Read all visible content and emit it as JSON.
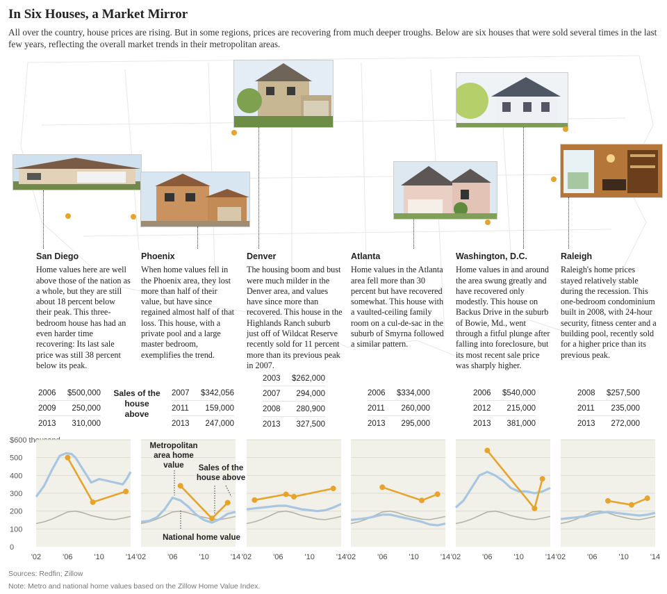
{
  "headline": "In Six Houses, a Market Mirror",
  "dek": "All over the country, house prices are rising. But in some regions, prices are recovering from much deeper troughs. Below are six houses that were sold several times in the last few years, reflecting the overall market trends in their metropolitan areas.",
  "sales_label": "Sales of the house above",
  "cities": [
    {
      "name": "San Diego",
      "text": "Home values here are well above those of the nation as a whole, but they are still about 18 percent below their peak. This three-bedroom house has had an even harder time recovering: Its last sale price was still 38 percent below its peak.",
      "sales": [
        {
          "year": "2006",
          "price": "$500,000"
        },
        {
          "year": "2009",
          "price": "250,000"
        },
        {
          "year": "2013",
          "price": "310,000"
        }
      ]
    },
    {
      "name": "Phoenix",
      "text": "When home values fell in the Phoenix area, they lost more than half of their value, but have since regained almost half of that loss. This house, with a private pool and a large master bedroom, exemplifies the trend.",
      "sales": [
        {
          "year": "2007",
          "price": "$342,056"
        },
        {
          "year": "2011",
          "price": "159,000"
        },
        {
          "year": "2013",
          "price": "247,000"
        }
      ]
    },
    {
      "name": "Denver",
      "text": "The housing boom and bust were much milder in the Denver area, and values have since more than recovered. This house in the Highlands Ranch suburb just off of Wildcat Reserve recently sold for 11 percent more than its previous peak in 2007.",
      "sales": [
        {
          "year": "2003",
          "price": "$262,000"
        },
        {
          "year": "2007",
          "price": "294,000"
        },
        {
          "year": "2008",
          "price": "280,900"
        },
        {
          "year": "2013",
          "price": "327,500"
        }
      ]
    },
    {
      "name": "Atlanta",
      "text": "Home values in the Atlanta area fell more than 30 percent but have recovered somewhat. This house with a vaulted-ceiling family room on a cul-de-sac in the suburb of Smyrna followed a similar pattern.",
      "sales": [
        {
          "year": "2006",
          "price": "$334,000"
        },
        {
          "year": "2011",
          "price": "260,000"
        },
        {
          "year": "2013",
          "price": "295,000"
        }
      ]
    },
    {
      "name": "Washington, D.C.",
      "text": "Home values in and around the area swung greatly and have recovered only modestly. This house on Backus Drive in the suburb of Bowie, Md., went through a fitful plunge after falling into foreclosure, but its most recent sale price was sharply higher.",
      "sales": [
        {
          "year": "2006",
          "price": "$540,000"
        },
        {
          "year": "2012",
          "price": "215,000"
        },
        {
          "year": "2013",
          "price": "381,000"
        }
      ]
    },
    {
      "name": "Raleigh",
      "text": "Raleigh's home prices stayed relatively stable during the recession. This one-bedroom condominium built in 2008, with 24-hour security, fitness center and a building pool, recently sold for a higher price than its previous peak.",
      "sales": [
        {
          "year": "2008",
          "price": "$257,500"
        },
        {
          "year": "2011",
          "price": "235,000"
        },
        {
          "year": "2013",
          "price": "272,000"
        }
      ]
    }
  ],
  "annotations": {
    "metro": [
      "Metropolitan",
      "area home",
      "value"
    ],
    "sales": [
      "Sales of the",
      "house above"
    ],
    "national": "National home value"
  },
  "source": "Sources: Redfin; Zillow",
  "note": "Note: Metro and national home values based on the Zillow Home Value Index.",
  "colors": {
    "sales": "#e6a42c",
    "metro": "#a9c6e0",
    "national": "#b3b3a5",
    "panel_bg": "#f1f1ea"
  },
  "chart_data": {
    "type": "line",
    "unit": "$ thousand",
    "ylim": [
      0,
      600
    ],
    "yticks": [
      0,
      100,
      200,
      300,
      400,
      500,
      600
    ],
    "ytick_labels": [
      "0",
      "100",
      "200",
      "300",
      "400",
      "500",
      "$600 thousand"
    ],
    "xlim": [
      2002,
      2014
    ],
    "xticks": [
      2002,
      2006,
      2010,
      2014
    ],
    "xtick_labels": [
      "'02",
      "'06",
      "'10",
      "'14"
    ],
    "national": {
      "x": [
        2002,
        2003,
        2004,
        2005,
        2006,
        2007,
        2008,
        2009,
        2010,
        2011,
        2012,
        2013,
        2014
      ],
      "y": [
        130,
        140,
        155,
        175,
        195,
        200,
        190,
        175,
        165,
        155,
        152,
        160,
        170
      ]
    },
    "panels": [
      {
        "name": "San Diego",
        "metro": {
          "x": [
            2002,
            2003,
            2004,
            2005,
            2005.8,
            2006.5,
            2007,
            2008,
            2009,
            2010,
            2011,
            2012,
            2013,
            2013.5,
            2014
          ],
          "y": [
            280,
            340,
            430,
            510,
            525,
            520,
            500,
            430,
            360,
            380,
            370,
            360,
            350,
            380,
            420
          ]
        },
        "sales": {
          "x": [
            2006,
            2009.2,
            2013.4
          ],
          "y": [
            500,
            250,
            310
          ]
        }
      },
      {
        "name": "Phoenix",
        "metro": {
          "x": [
            2002,
            2003,
            2004,
            2005,
            2006,
            2007,
            2008,
            2009,
            2010,
            2011,
            2012,
            2013,
            2014
          ],
          "y": [
            140,
            145,
            165,
            210,
            275,
            260,
            225,
            180,
            150,
            135,
            155,
            185,
            195
          ]
        },
        "sales": {
          "x": [
            2007,
            2011,
            2013
          ],
          "y": [
            342,
            159,
            247
          ]
        }
      },
      {
        "name": "Denver",
        "metro": {
          "x": [
            2002,
            2003,
            2004,
            2005,
            2006,
            2007,
            2008,
            2009,
            2010,
            2011,
            2012,
            2013,
            2014
          ],
          "y": [
            210,
            215,
            220,
            225,
            230,
            230,
            220,
            210,
            205,
            200,
            205,
            220,
            240
          ]
        },
        "sales": {
          "x": [
            2003,
            2007,
            2008,
            2013
          ],
          "y": [
            262,
            294,
            281,
            327
          ]
        }
      },
      {
        "name": "Atlanta",
        "metro": {
          "x": [
            2002,
            2003,
            2004,
            2005,
            2006,
            2007,
            2008,
            2009,
            2010,
            2011,
            2012,
            2013,
            2014
          ],
          "y": [
            150,
            155,
            160,
            170,
            180,
            180,
            170,
            160,
            150,
            140,
            125,
            120,
            130
          ]
        },
        "sales": {
          "x": [
            2006,
            2011,
            2013
          ],
          "y": [
            334,
            260,
            295
          ]
        }
      },
      {
        "name": "Washington, D.C.",
        "metro": {
          "x": [
            2002,
            2003,
            2004,
            2005,
            2006,
            2007,
            2008,
            2009,
            2010,
            2011,
            2012,
            2013,
            2014
          ],
          "y": [
            220,
            260,
            330,
            400,
            420,
            400,
            370,
            330,
            310,
            310,
            300,
            310,
            330
          ]
        },
        "sales": {
          "x": [
            2006,
            2012,
            2013
          ],
          "y": [
            540,
            215,
            381
          ]
        }
      },
      {
        "name": "Raleigh",
        "metro": {
          "x": [
            2002,
            2003,
            2004,
            2005,
            2006,
            2007,
            2008,
            2009,
            2010,
            2011,
            2012,
            2013,
            2014
          ],
          "y": [
            155,
            160,
            165,
            170,
            180,
            190,
            195,
            190,
            185,
            180,
            175,
            180,
            190
          ]
        },
        "sales": {
          "x": [
            2008,
            2011,
            2013
          ],
          "y": [
            257.5,
            235,
            272
          ]
        }
      }
    ]
  }
}
